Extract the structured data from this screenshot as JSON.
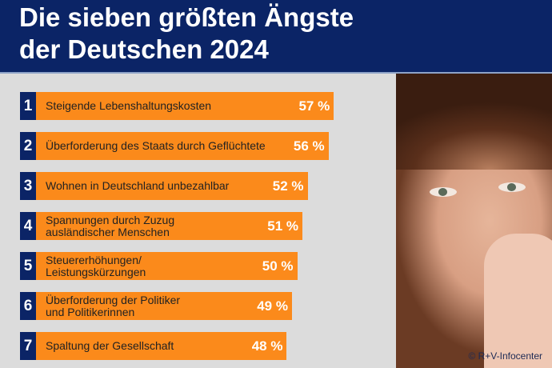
{
  "chart_data": {
    "type": "bar",
    "title": "Die sieben größten Ängste der Deutschen 2024",
    "title_lines": [
      "Die sieben größten Ängste",
      "der Deutschen 2024"
    ],
    "categories": [
      "Steigende Lebenshaltungskosten",
      "Überforderung des Staats durch Geflüchtete",
      "Wohnen in Deutschland unbezahlbar",
      "Spannungen durch Zuzug ausländischer Menschen",
      "Steuererhöhungen/ Leistungskürzungen",
      "Überforderung der Politiker und Politikerinnen",
      "Spaltung der Gesellschaft"
    ],
    "ranks": [
      "1",
      "2",
      "3",
      "4",
      "5",
      "6",
      "7"
    ],
    "values": [
      57,
      56,
      52,
      51,
      50,
      49,
      48
    ],
    "value_labels": [
      "57 %",
      "56 %",
      "52 %",
      "51 %",
      "50 %",
      "49 %",
      "48 %"
    ],
    "unit": "%",
    "xlim": [
      0,
      100
    ],
    "colors": {
      "bar": "#fb8a1b",
      "rank": "#0b2466",
      "header": "#0b2466"
    }
  },
  "source": "© R+V-Infocenter"
}
